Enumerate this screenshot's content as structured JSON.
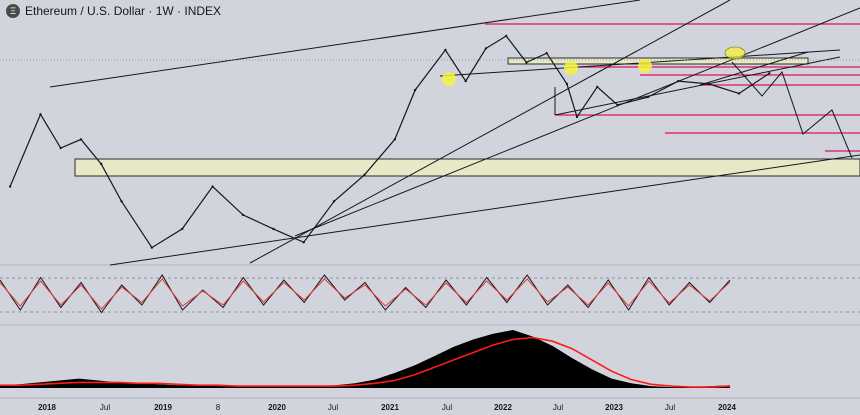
{
  "header": {
    "symbol_icon": "ethereum-logo-icon",
    "logo_glyph": "Ξ",
    "title": "Ethereum / U.S. Dollar · 1W · INDEX"
  },
  "colors": {
    "background": "#d1d4dc",
    "price": "#131722",
    "trendline": "#131722",
    "resistance": "#e0115f",
    "zone_fill": "#e6e8c6",
    "zone_stroke": "#2b2b2b",
    "marker": "#f5f23a",
    "oscillator_k": "#131722",
    "oscillator_d": "#e53935",
    "histogram": "#000000",
    "histogram_avg": "#ff1a1a"
  },
  "chart_data": [
    {
      "type": "line",
      "panel": "price",
      "x": [
        "2017-10",
        "2018-01",
        "2018-03",
        "2018-05",
        "2018-07",
        "2018-09",
        "2018-12",
        "2019-03",
        "2019-06",
        "2019-09",
        "2019-12",
        "2020-03",
        "2020-06",
        "2020-09",
        "2020-12",
        "2021-02",
        "2021-05",
        "2021-07",
        "2021-09",
        "2021-11",
        "2022-01",
        "2022-03",
        "2022-05",
        "2022-06",
        "2022-08",
        "2022-10",
        "2023-01",
        "2023-04",
        "2023-07",
        "2023-10",
        "2024-01"
      ],
      "y": [
        300,
        1100,
        600,
        700,
        450,
        230,
        100,
        140,
        300,
        180,
        140,
        110,
        230,
        370,
        700,
        1700,
        3500,
        2000,
        3600,
        4500,
        2800,
        3300,
        1900,
        1050,
        1800,
        1300,
        1500,
        2000,
        1900,
        1600,
        2300
      ],
      "scale": "log",
      "xlim": [
        "2017-09",
        "2024-06"
      ]
    },
    {
      "type": "line",
      "panel": "oscillator",
      "series": [
        {
          "values": [
            80,
            20,
            85,
            25,
            75,
            15,
            70,
            30,
            90,
            20,
            60,
            25,
            85,
            30,
            80,
            35,
            90,
            40,
            75,
            20,
            65,
            25,
            80,
            30,
            85,
            35,
            90,
            30,
            70,
            25,
            80,
            20,
            85,
            30,
            75,
            35,
            80
          ]
        },
        {
          "values": [
            75,
            28,
            78,
            30,
            70,
            22,
            66,
            35,
            82,
            28,
            58,
            30,
            78,
            36,
            75,
            40,
            82,
            44,
            70,
            28,
            62,
            30,
            74,
            35,
            78,
            40,
            82,
            36,
            66,
            30,
            74,
            28,
            78,
            34,
            70,
            38,
            76
          ]
        }
      ],
      "ylim": [
        0,
        100
      ]
    },
    {
      "type": "area",
      "panel": "histogram",
      "series": [
        {
          "values": [
            3,
            4,
            6,
            8,
            10,
            8,
            6,
            5,
            4,
            3,
            3,
            2,
            2,
            2,
            2,
            2,
            2,
            3,
            5,
            9,
            16,
            24,
            34,
            44,
            52,
            58,
            62,
            55,
            45,
            32,
            20,
            10,
            5,
            2,
            1,
            1,
            2,
            3
          ]
        },
        {
          "values": [
            3,
            3,
            4,
            5,
            6,
            6,
            6,
            5,
            5,
            4,
            3,
            3,
            2,
            2,
            2,
            2,
            2,
            2,
            3,
            5,
            8,
            14,
            22,
            30,
            38,
            46,
            52,
            54,
            50,
            42,
            30,
            18,
            9,
            4,
            2,
            1,
            1,
            2
          ]
        }
      ]
    }
  ],
  "x_axis": {
    "ticks": [
      {
        "label": "2018",
        "bold": true
      },
      {
        "label": "Jul",
        "bold": false
      },
      {
        "label": "2019",
        "bold": true
      },
      {
        "label": "8",
        "bold": false
      },
      {
        "label": "2020",
        "bold": true
      },
      {
        "label": "Jul",
        "bold": false
      },
      {
        "label": "2021",
        "bold": true
      },
      {
        "label": "Jul",
        "bold": false
      },
      {
        "label": "2022",
        "bold": true
      },
      {
        "label": "Jul",
        "bold": false
      },
      {
        "label": "2023",
        "bold": true
      },
      {
        "label": "Jul",
        "bold": false
      },
      {
        "label": "2024",
        "bold": true
      }
    ]
  }
}
